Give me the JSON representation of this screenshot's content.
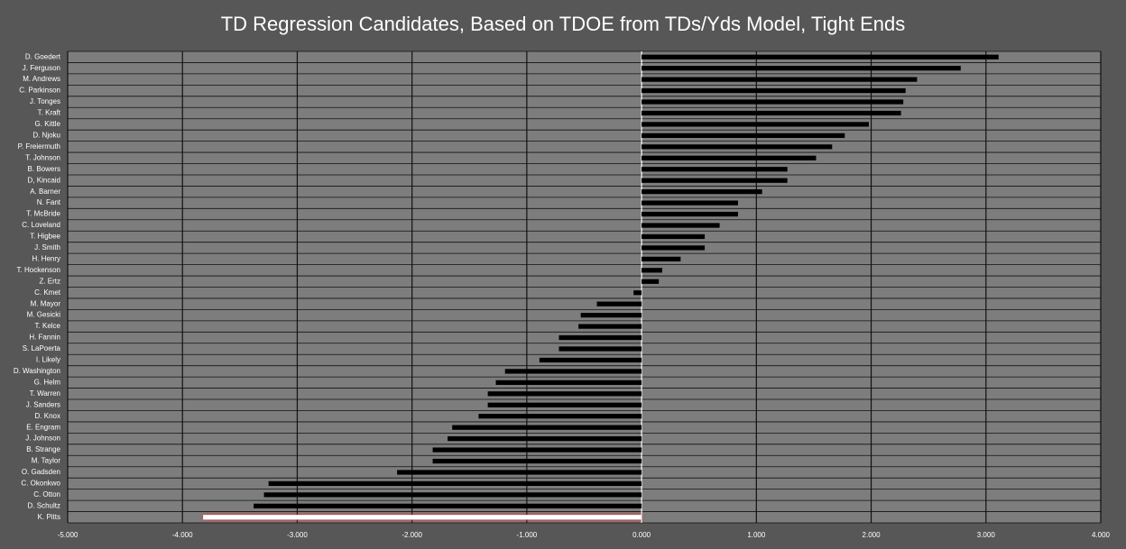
{
  "chart_data": {
    "type": "barh",
    "title": "TD Regression Candidates, Based on TDOE from TDs/Yds Model, Tight Ends",
    "categories": [
      "D. Goedert",
      "J. Ferguson",
      "M. Andrews",
      "C. Parkinson",
      "J. Tonges",
      "T. Kraft",
      "G. Kittle",
      "D. Njoku",
      "P. Freiermuth",
      "T. Johnson",
      "B. Bowers",
      "D, Kincaid",
      "A. Barner",
      "N. Fant",
      "T. McBride",
      "C. Loveland",
      "T. Higbee",
      "J. Smith",
      "H. Henry",
      "T. Hockenson",
      "Z. Ertz",
      "C. Kmet",
      "M. Mayor",
      "M. Gesicki",
      "T. Kelce",
      "H. Fannin",
      "S. LaPoerta",
      "I. Likely",
      "D. Washington",
      "G. Helm",
      "T. Warren",
      "J. Sanders",
      "D. Knox",
      "E. Engram",
      "J. Johnson",
      "B. Strange",
      "M. Taylor",
      "O. Gadsden",
      "C. Okonkwo",
      "C. Otton",
      "D. Schultz",
      "K. Pitts"
    ],
    "values": [
      3.11,
      2.78,
      2.4,
      2.3,
      2.28,
      2.26,
      1.98,
      1.77,
      1.66,
      1.52,
      1.27,
      1.27,
      1.05,
      0.84,
      0.84,
      0.68,
      0.55,
      0.55,
      0.34,
      0.18,
      0.15,
      -0.07,
      -0.39,
      -0.53,
      -0.55,
      -0.72,
      -0.72,
      -0.89,
      -1.19,
      -1.27,
      -1.34,
      -1.34,
      -1.42,
      -1.65,
      -1.69,
      -1.82,
      -1.82,
      -2.13,
      -3.25,
      -3.29,
      -3.38,
      -3.82
    ],
    "colors": [
      "#000000",
      "#000000",
      "#000000",
      "#000000",
      "#000000",
      "#000000",
      "#000000",
      "#000000",
      "#000000",
      "#000000",
      "#000000",
      "#000000",
      "#000000",
      "#000000",
      "#000000",
      "#000000",
      "#000000",
      "#000000",
      "#000000",
      "#000000",
      "#000000",
      "#000000",
      "#000000",
      "#000000",
      "#000000",
      "#000000",
      "#000000",
      "#000000",
      "#000000",
      "#000000",
      "#000000",
      "#000000",
      "#000000",
      "#000000",
      "#000000",
      "#000000",
      "#000000",
      "#000000",
      "#000000",
      "#000000",
      "#000000",
      "#ffffff"
    ],
    "xlim": [
      -5,
      4
    ],
    "xticks": [
      {
        "value": -5,
        "label": "-5.000"
      },
      {
        "value": -4,
        "label": "-4.000"
      },
      {
        "value": -3,
        "label": "-3.000"
      },
      {
        "value": -2,
        "label": "-2.000"
      },
      {
        "value": -1,
        "label": "-1.000"
      },
      {
        "value": 0,
        "label": "0.000"
      },
      {
        "value": 1,
        "label": "1.000"
      },
      {
        "value": 2,
        "label": "2.000"
      },
      {
        "value": 3,
        "label": "3.000"
      },
      {
        "value": 4,
        "label": "4.000"
      }
    ],
    "grid": true
  }
}
